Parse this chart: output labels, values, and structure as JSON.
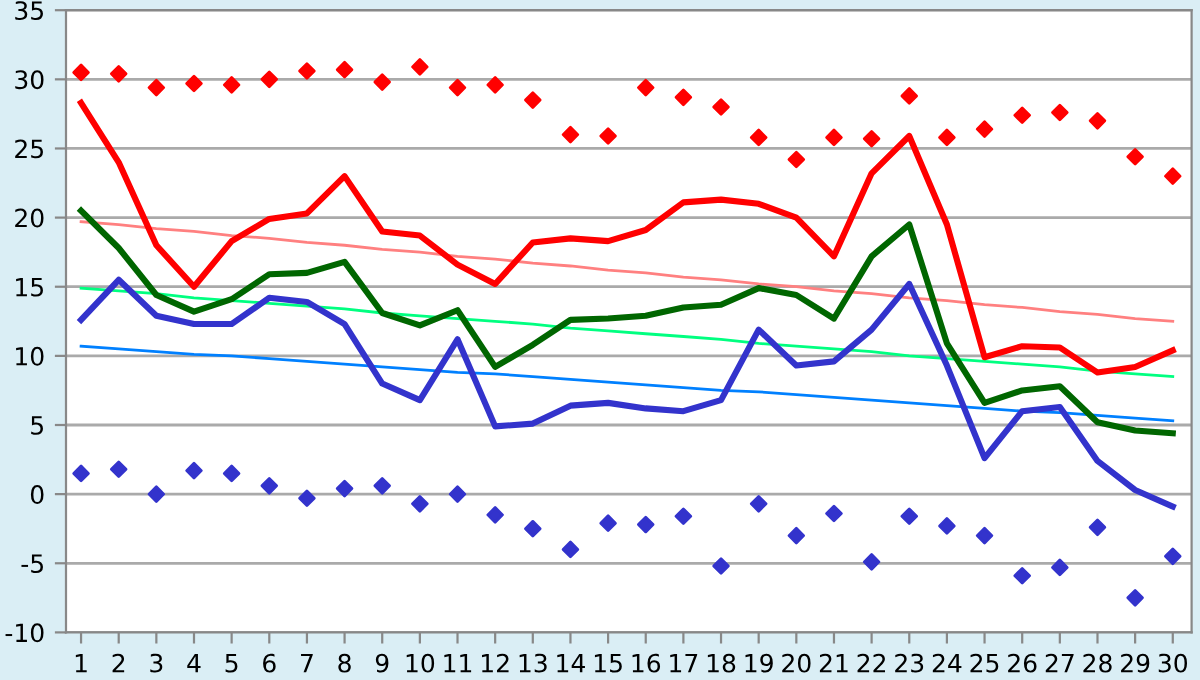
{
  "chart_data": {
    "type": "line",
    "x": [
      1,
      2,
      3,
      4,
      5,
      6,
      7,
      8,
      9,
      10,
      11,
      12,
      13,
      14,
      15,
      16,
      17,
      18,
      19,
      20,
      21,
      22,
      23,
      24,
      25,
      26,
      27,
      28,
      29,
      30
    ],
    "xlim": [
      0.6,
      30.5
    ],
    "xticks": [
      1,
      2,
      3,
      4,
      5,
      6,
      7,
      8,
      9,
      10,
      11,
      12,
      13,
      14,
      15,
      16,
      17,
      18,
      19,
      20,
      21,
      22,
      23,
      24,
      25,
      26,
      27,
      28,
      29,
      30
    ],
    "ylim": [
      -10,
      35
    ],
    "yticks": [
      -10,
      -5,
      0,
      5,
      10,
      15,
      20,
      25,
      30,
      35
    ],
    "grid": "y",
    "legend": false,
    "series": [
      {
        "color": "#ff8080",
        "values": [
          19.7,
          19.5,
          19.2,
          19.0,
          18.7,
          18.5,
          18.2,
          18.0,
          17.7,
          17.5,
          17.2,
          17.0,
          16.7,
          16.5,
          16.2,
          16.0,
          15.7,
          15.5,
          15.2,
          15.0,
          14.7,
          14.5,
          14.2,
          14.0,
          13.7,
          13.5,
          13.2,
          13.0,
          12.7,
          12.5
        ]
      },
      {
        "color": "#00ff80",
        "values": [
          14.9,
          14.7,
          14.5,
          14.2,
          14.0,
          13.8,
          13.6,
          13.4,
          13.1,
          12.9,
          12.7,
          12.5,
          12.3,
          12.0,
          11.8,
          11.6,
          11.4,
          11.2,
          10.9,
          10.7,
          10.5,
          10.3,
          10.0,
          9.8,
          9.6,
          9.4,
          9.2,
          8.9,
          8.7,
          8.5
        ]
      },
      {
        "color": "#0080ff",
        "values": [
          10.7,
          10.5,
          10.3,
          10.1,
          10.0,
          9.8,
          9.6,
          9.4,
          9.2,
          9.0,
          8.8,
          8.7,
          8.5,
          8.3,
          8.1,
          7.9,
          7.7,
          7.5,
          7.4,
          7.2,
          7.0,
          6.8,
          6.6,
          6.4,
          6.2,
          6.0,
          5.9,
          5.7,
          5.5,
          5.3
        ]
      },
      {
        "type": "scatter",
        "marker": "diamond",
        "color": "#ff0000",
        "values": [
          30.5,
          30.4,
          29.4,
          29.7,
          29.6,
          30,
          30.6,
          30.7,
          29.8,
          30.9,
          29.4,
          29.6,
          28.5,
          26,
          25.9,
          29.4,
          28.7,
          28,
          25.8,
          24.2,
          25.8,
          25.7,
          28.8,
          25.8,
          26.4,
          27.4,
          27.6,
          27,
          24.4,
          23
        ]
      },
      {
        "type": "scatter",
        "marker": "diamond",
        "color": "#3333cc",
        "values": [
          1.5,
          1.8,
          0,
          1.7,
          1.5,
          0.6,
          -0.3,
          0.4,
          0.6,
          -0.7,
          0,
          -1.5,
          -2.5,
          -4,
          -2.1,
          -2.2,
          -1.6,
          -5.2,
          -0.7,
          -3,
          -1.4,
          -4.9,
          -1.6,
          -2.3,
          -3,
          -5.9,
          -5.3,
          -2.4,
          -7.5,
          -4.5
        ]
      },
      {
        "color": "#ff0000",
        "values": [
          28.3,
          24,
          18,
          15,
          18.3,
          19.9,
          20.3,
          23,
          19,
          18.7,
          16.6,
          15.2,
          18.2,
          18.5,
          18.3,
          19.1,
          21.1,
          21.3,
          21,
          20,
          17.2,
          23.2,
          25.9,
          19.5,
          9.9,
          10.7,
          10.6,
          8.8,
          9.2,
          10.4
        ]
      },
      {
        "color": "#006600",
        "values": [
          20.5,
          17.8,
          14.4,
          13.2,
          14.1,
          15.9,
          16,
          16.8,
          13.1,
          12.2,
          13.3,
          9.2,
          10.8,
          12.6,
          12.7,
          12.9,
          13.5,
          13.7,
          14.9,
          14.4,
          12.7,
          17.2,
          19.5,
          10.9,
          6.6,
          7.5,
          7.8,
          5.2,
          4.6,
          4.4
        ]
      },
      {
        "color": "#3333cc",
        "values": [
          12.6,
          15.5,
          12.9,
          12.3,
          12.3,
          14.2,
          13.9,
          12.3,
          8,
          6.8,
          11.2,
          4.9,
          5.1,
          6.4,
          6.6,
          6.2,
          6,
          6.8,
          11.9,
          9.3,
          9.6,
          11.9,
          15.2,
          9.3,
          2.6,
          6,
          6.3,
          2.4,
          0.3,
          -0.9
        ]
      }
    ]
  }
}
